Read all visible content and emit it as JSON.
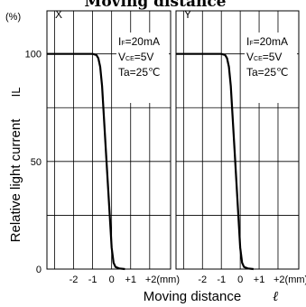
{
  "chart_data": {
    "type": "line",
    "title": "Moving distance",
    "ylabel": "Relative light current",
    "ylabel_symbol": "IL",
    "y_unit": "(%)",
    "xlabel": "Moving distance",
    "xlabel_symbol": "ℓ",
    "ylim": [
      0,
      120
    ],
    "yticks": [
      "0",
      "50",
      "100"
    ],
    "xlim": [
      -3.4,
      3.1
    ],
    "xticks": [
      "-2",
      "-1",
      "0",
      "+1",
      "+2(mm)"
    ],
    "grid": true,
    "panels": [
      {
        "name": "X",
        "conditions": {
          "if_label": "I",
          "if_sub": "F",
          "if_val": "=20mA",
          "vce_label": "V",
          "vce_sub": "CE",
          "vce_val": "=5V",
          "ta": "Ta=25℃"
        },
        "x": [
          -3.4,
          -1.0,
          -0.8,
          -0.7,
          -0.6,
          -0.5,
          -0.3,
          0.0,
          0.1,
          0.2,
          0.4,
          0.7
        ],
        "y": [
          100,
          100,
          99.5,
          98,
          94,
          85,
          55,
          10,
          3,
          1,
          0.3,
          0
        ]
      },
      {
        "name": "Y",
        "conditions": {
          "if_label": "I",
          "if_sub": "F",
          "if_val": "=20mA",
          "vce_label": "V",
          "vce_sub": "CE",
          "vce_val": "=5V",
          "ta": "Ta=25℃"
        },
        "x": [
          -3.4,
          -1.0,
          -0.8,
          -0.7,
          -0.6,
          -0.5,
          -0.3,
          0.0,
          0.1,
          0.2,
          0.4,
          0.7
        ],
        "y": [
          100,
          100,
          99.5,
          98,
          94,
          85,
          55,
          10,
          3,
          1,
          0.3,
          0
        ]
      }
    ]
  }
}
